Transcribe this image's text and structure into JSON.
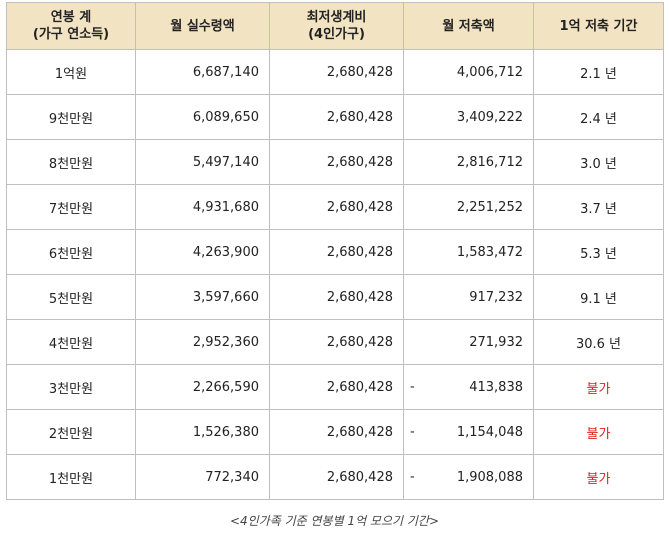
{
  "headers": [
    {
      "line1": "연봉 계",
      "line2": "(가구 연소득)"
    },
    {
      "line1": "월 실수령액",
      "line2": ""
    },
    {
      "line1": "최저생계비",
      "line2": "(4인가구)"
    },
    {
      "line1": "월 저축액",
      "line2": ""
    },
    {
      "line1": "1억 저축 기간",
      "line2": ""
    }
  ],
  "rows": [
    {
      "income": "1억원",
      "net": "6,687,140",
      "living": "2,680,428",
      "neg": "",
      "saving": "4,006,712",
      "period": "2.1 년",
      "possible": true
    },
    {
      "income": "9천만원",
      "net": "6,089,650",
      "living": "2,680,428",
      "neg": "",
      "saving": "3,409,222",
      "period": "2.4 년",
      "possible": true
    },
    {
      "income": "8천만원",
      "net": "5,497,140",
      "living": "2,680,428",
      "neg": "",
      "saving": "2,816,712",
      "period": "3.0 년",
      "possible": true
    },
    {
      "income": "7천만원",
      "net": "4,931,680",
      "living": "2,680,428",
      "neg": "",
      "saving": "2,251,252",
      "period": "3.7 년",
      "possible": true
    },
    {
      "income": "6천만원",
      "net": "4,263,900",
      "living": "2,680,428",
      "neg": "",
      "saving": "1,583,472",
      "period": "5.3 년",
      "possible": true
    },
    {
      "income": "5천만원",
      "net": "3,597,660",
      "living": "2,680,428",
      "neg": "",
      "saving": "917,232",
      "period": "9.1 년",
      "possible": true
    },
    {
      "income": "4천만원",
      "net": "2,952,360",
      "living": "2,680,428",
      "neg": "",
      "saving": "271,932",
      "period": "30.6 년",
      "possible": true
    },
    {
      "income": "3천만원",
      "net": "2,266,590",
      "living": "2,680,428",
      "neg": "-",
      "saving": "413,838",
      "period": "불가",
      "possible": false
    },
    {
      "income": "2천만원",
      "net": "1,526,380",
      "living": "2,680,428",
      "neg": "-",
      "saving": "1,154,048",
      "period": "불가",
      "possible": false
    },
    {
      "income": "1천만원",
      "net": "772,340",
      "living": "2,680,428",
      "neg": "-",
      "saving": "1,908,088",
      "period": "불가",
      "possible": false
    }
  ],
  "caption": "<4인가족 기준 연봉별 1억 모으기 기간>",
  "colors": {
    "header_bg": "#f2e3c3",
    "impossible_text": "#e02020",
    "border": "#bfbfbf"
  }
}
